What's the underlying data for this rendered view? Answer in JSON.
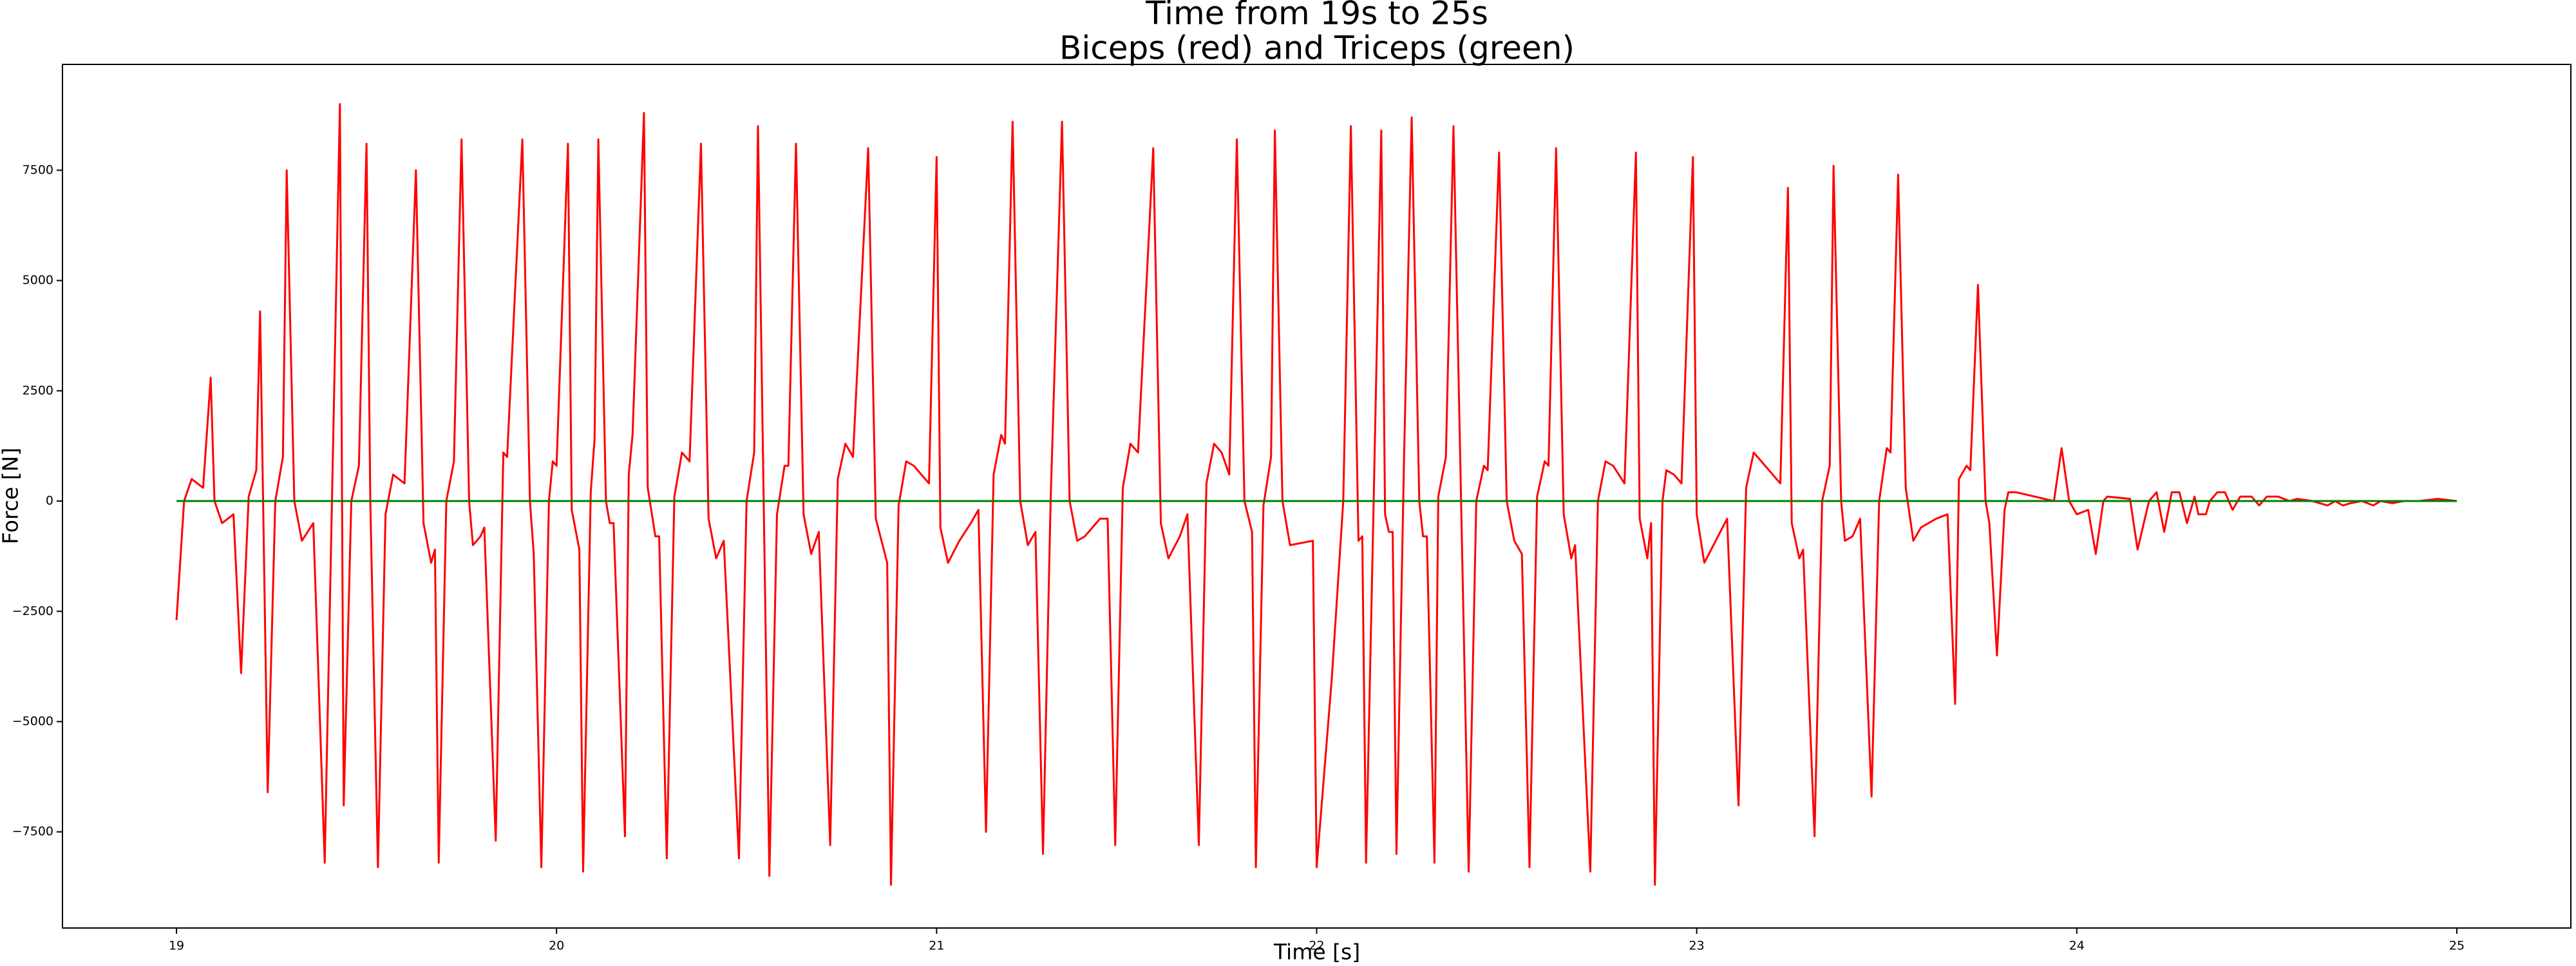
{
  "chart_data": {
    "type": "line",
    "title": "Time from 19s to 25s",
    "subtitle": "Biceps (red) and Triceps (green)",
    "xlabel": "Time [s]",
    "ylabel": "Force [N]",
    "xlim": [
      18.7,
      25.3
    ],
    "ylim": [
      -9680,
      9900
    ],
    "xticks": [
      19,
      20,
      21,
      22,
      23,
      24,
      25
    ],
    "yticks": [
      {
        "value": -7500,
        "label": "−7500"
      },
      {
        "value": -5000,
        "label": "−5000"
      },
      {
        "value": -2500,
        "label": "−2500"
      },
      0,
      2500,
      5000,
      7500
    ],
    "grid": false,
    "series": [
      {
        "color": "#ff0000",
        "x": [
          19.0,
          19.02,
          19.04,
          19.07,
          19.09,
          19.1,
          19.12,
          19.15,
          19.17,
          19.19,
          19.21,
          19.22,
          19.24,
          19.26,
          19.28,
          19.29,
          19.31,
          19.33,
          19.36,
          19.39,
          19.43,
          19.44,
          19.46,
          19.48,
          19.5,
          19.51,
          19.53,
          19.55,
          19.57,
          19.6,
          19.63,
          19.65,
          19.67,
          19.68,
          19.69,
          19.71,
          19.73,
          19.75,
          19.77,
          19.78,
          19.8,
          19.81,
          19.84,
          19.86,
          19.87,
          19.91,
          19.93,
          19.94,
          19.96,
          19.98,
          19.99,
          20.0,
          20.03,
          20.04,
          20.06,
          20.07,
          20.09,
          20.1,
          20.11,
          20.13,
          20.14,
          20.15,
          20.18,
          20.19,
          20.2,
          20.23,
          20.24,
          20.26,
          20.27,
          20.29,
          20.31,
          20.33,
          20.35,
          20.38,
          20.4,
          20.42,
          20.44,
          20.48,
          20.5,
          20.52,
          20.53,
          20.56,
          20.58,
          20.6,
          20.61,
          20.63,
          20.65,
          20.67,
          20.69,
          20.72,
          20.74,
          20.76,
          20.78,
          20.82,
          20.84,
          20.87,
          20.88,
          20.9,
          20.92,
          20.94,
          20.98,
          21.0,
          21.01,
          21.03,
          21.06,
          21.09,
          21.11,
          21.13,
          21.15,
          21.17,
          21.18,
          21.2,
          21.22,
          21.24,
          21.26,
          21.28,
          21.3,
          21.33,
          21.35,
          21.37,
          21.39,
          21.41,
          21.43,
          21.45,
          21.47,
          21.49,
          21.51,
          21.53,
          21.57,
          21.59,
          21.61,
          21.64,
          21.66,
          21.69,
          21.71,
          21.73,
          21.75,
          21.77,
          21.79,
          21.81,
          21.83,
          21.84,
          21.86,
          21.88,
          21.89,
          21.91,
          21.93,
          21.99,
          22.0,
          22.04,
          22.07,
          22.09,
          22.11,
          22.12,
          22.13,
          22.15,
          22.17,
          22.18,
          22.19,
          22.2,
          22.21,
          22.23,
          22.25,
          22.27,
          22.28,
          22.29,
          22.31,
          22.32,
          22.34,
          22.36,
          22.38,
          22.4,
          22.42,
          22.44,
          22.45,
          22.48,
          22.5,
          22.52,
          22.54,
          22.56,
          22.58,
          22.6,
          22.61,
          22.63,
          22.65,
          22.67,
          22.68,
          22.72,
          22.74,
          22.76,
          22.78,
          22.81,
          22.84,
          22.85,
          22.87,
          22.88,
          22.89,
          22.91,
          22.92,
          22.94,
          22.96,
          22.99,
          23.0,
          23.02,
          23.05,
          23.08,
          23.11,
          23.13,
          23.15,
          23.17,
          23.2,
          23.22,
          23.24,
          23.25,
          23.27,
          23.28,
          23.31,
          23.33,
          23.35,
          23.36,
          23.38,
          23.39,
          23.41,
          23.43,
          23.46,
          23.48,
          23.5,
          23.51,
          23.53,
          23.55,
          23.57,
          23.59,
          23.63,
          23.66,
          23.68,
          23.69,
          23.71,
          23.72,
          23.74,
          23.76,
          23.77,
          23.79,
          23.81,
          23.82,
          23.84,
          23.94,
          23.96,
          23.98,
          24.0,
          24.03,
          24.05,
          24.07,
          24.08,
          24.14,
          24.16,
          24.19,
          24.21,
          24.23,
          24.25,
          24.27,
          24.29,
          24.31,
          24.32,
          24.34,
          24.35,
          24.37,
          24.39,
          24.41,
          24.43,
          24.46,
          24.48,
          24.5,
          24.53,
          24.56,
          24.58,
          24.62,
          24.66,
          24.68,
          24.7,
          24.72,
          24.75,
          24.78,
          24.8,
          24.83,
          24.86,
          24.9,
          24.95,
          25.0
        ],
        "values": [
          -2700,
          0,
          500,
          300,
          2800,
          0,
          -500,
          -300,
          -3900,
          100,
          700,
          4300,
          -6600,
          0,
          1000,
          7500,
          0,
          -900,
          -500,
          -8200,
          9000,
          -6900,
          0,
          800,
          8100,
          0,
          -8300,
          -300,
          600,
          400,
          7500,
          -500,
          -1400,
          -1100,
          -8200,
          0,
          900,
          8200,
          0,
          -1000,
          -800,
          -600,
          -7700,
          1100,
          1000,
          8200,
          0,
          -1200,
          -8300,
          0,
          900,
          800,
          8100,
          -200,
          -1100,
          -8400,
          200,
          1400,
          8200,
          0,
          -500,
          -500,
          -7600,
          600,
          1500,
          8800,
          300,
          -800,
          -800,
          -8100,
          100,
          1100,
          900,
          8100,
          -400,
          -1300,
          -900,
          -8100,
          0,
          1100,
          8500,
          -8500,
          -300,
          800,
          800,
          8100,
          -300,
          -1200,
          -700,
          -7800,
          500,
          1300,
          1000,
          8000,
          -400,
          -1400,
          -8700,
          -100,
          900,
          800,
          400,
          7800,
          -600,
          -1400,
          -900,
          -500,
          -200,
          -7500,
          600,
          1500,
          1300,
          8600,
          0,
          -1000,
          -700,
          -8000,
          0,
          8600,
          0,
          -900,
          -800,
          -600,
          -400,
          -400,
          -7800,
          300,
          1300,
          1100,
          8000,
          -500,
          -1300,
          -800,
          -300,
          -7800,
          400,
          1300,
          1100,
          600,
          8200,
          0,
          -700,
          -8300,
          -100,
          1000,
          8400,
          0,
          -1000,
          -900,
          -8300,
          -4000,
          0,
          8500,
          -900,
          -800,
          -8200,
          0,
          8400,
          -300,
          -700,
          -700,
          -8000,
          1000,
          8700,
          0,
          -800,
          -800,
          -8200,
          100,
          1000,
          8500,
          0,
          -8400,
          0,
          800,
          700,
          7900,
          0,
          -900,
          -1200,
          -8300,
          100,
          900,
          800,
          8000,
          -300,
          -1300,
          -1000,
          -8400,
          0,
          900,
          800,
          400,
          7900,
          -400,
          -1300,
          -500,
          -8700,
          0,
          700,
          600,
          400,
          7800,
          -300,
          -1400,
          -900,
          -400,
          -6900,
          300,
          1100,
          900,
          600,
          400,
          7100,
          -500,
          -1300,
          -1100,
          -7600,
          0,
          800,
          7600,
          0,
          -900,
          -800,
          -400,
          -6700,
          0,
          1200,
          1100,
          7400,
          300,
          -900,
          -600,
          -400,
          -300,
          -4600,
          500,
          800,
          700,
          4900,
          0,
          -500,
          -3500,
          -200,
          200,
          200,
          0,
          1200,
          0,
          -300,
          -200,
          -1200,
          0,
          100,
          50,
          -1100,
          0,
          200,
          -700,
          200,
          200,
          -500,
          100,
          -300,
          -300,
          0,
          200,
          200,
          -200,
          100,
          100,
          -100,
          100,
          100,
          0,
          50,
          0,
          -100,
          0,
          -100,
          -50,
          0,
          -100,
          0,
          -50,
          0,
          0,
          50,
          0
        ]
      },
      {
        "color": "#008000",
        "x": [
          19,
          25
        ],
        "values": [
          0,
          0
        ]
      }
    ]
  }
}
